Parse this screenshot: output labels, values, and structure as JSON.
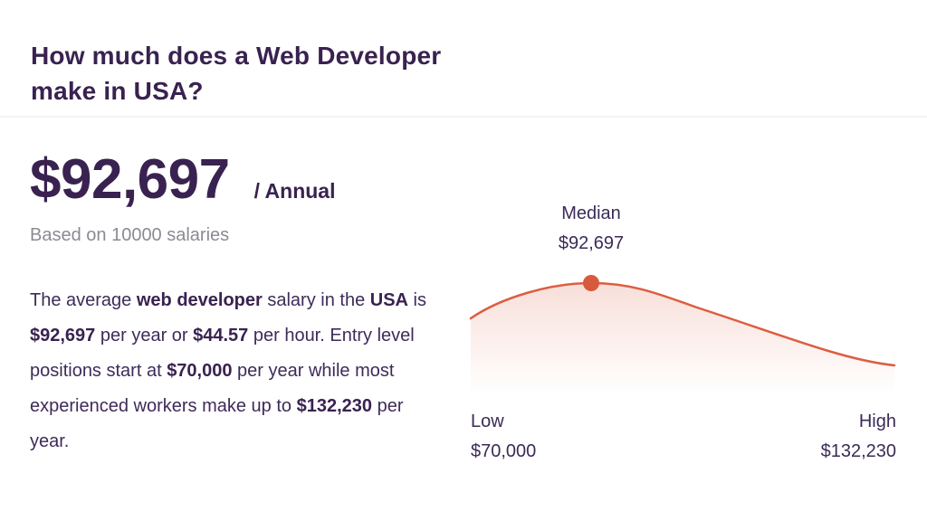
{
  "header": {
    "title": "How much does a Web Developer make in USA?"
  },
  "salary": {
    "amount": "$92,697",
    "period_label": "/ Annual",
    "based_on": "Based on 10000 salaries"
  },
  "description": {
    "segments": [
      {
        "text": "The average ",
        "bold": false
      },
      {
        "text": "web developer",
        "bold": true
      },
      {
        "text": " salary in the ",
        "bold": false
      },
      {
        "text": "USA",
        "bold": true
      },
      {
        "text": " is ",
        "bold": false
      },
      {
        "text": "$92,697",
        "bold": true
      },
      {
        "text": " per year or ",
        "bold": false
      },
      {
        "text": "$44.57",
        "bold": true
      },
      {
        "text": " per hour. Entry level positions start at ",
        "bold": false
      },
      {
        "text": "$70,000",
        "bold": true
      },
      {
        "text": " per year while most experienced workers make up to ",
        "bold": false
      },
      {
        "text": "$132,230",
        "bold": true
      },
      {
        "text": " per year.",
        "bold": false
      }
    ]
  },
  "chart": {
    "median_label": "Median",
    "median_value": "$92,697",
    "low_label": "Low",
    "low_value": "$70,000",
    "high_label": "High",
    "high_value": "$132,230"
  },
  "colors": {
    "accent_line": "#dc5e42",
    "median_dot": "#d85a3c",
    "text_primary": "#392250",
    "text_muted": "#8d8993",
    "divider": "#f4f3f6"
  },
  "chart_data": {
    "type": "area",
    "title": "Web Developer salary distribution (USA)",
    "x": [
      "Low",
      "Median",
      "High"
    ],
    "values": [
      70000,
      92697,
      132230
    ],
    "value_labels": [
      "$70,000",
      "$92,697",
      "$132,230"
    ],
    "median_marker": {
      "label": "Median",
      "value": 92697,
      "display": "$92,697"
    },
    "xlabel": "",
    "ylabel": "",
    "grid": false,
    "legend_position": "none",
    "line_color": "#dc5e42",
    "area_fill": "fade from rgba(220,94,66,0.20) to transparent"
  }
}
